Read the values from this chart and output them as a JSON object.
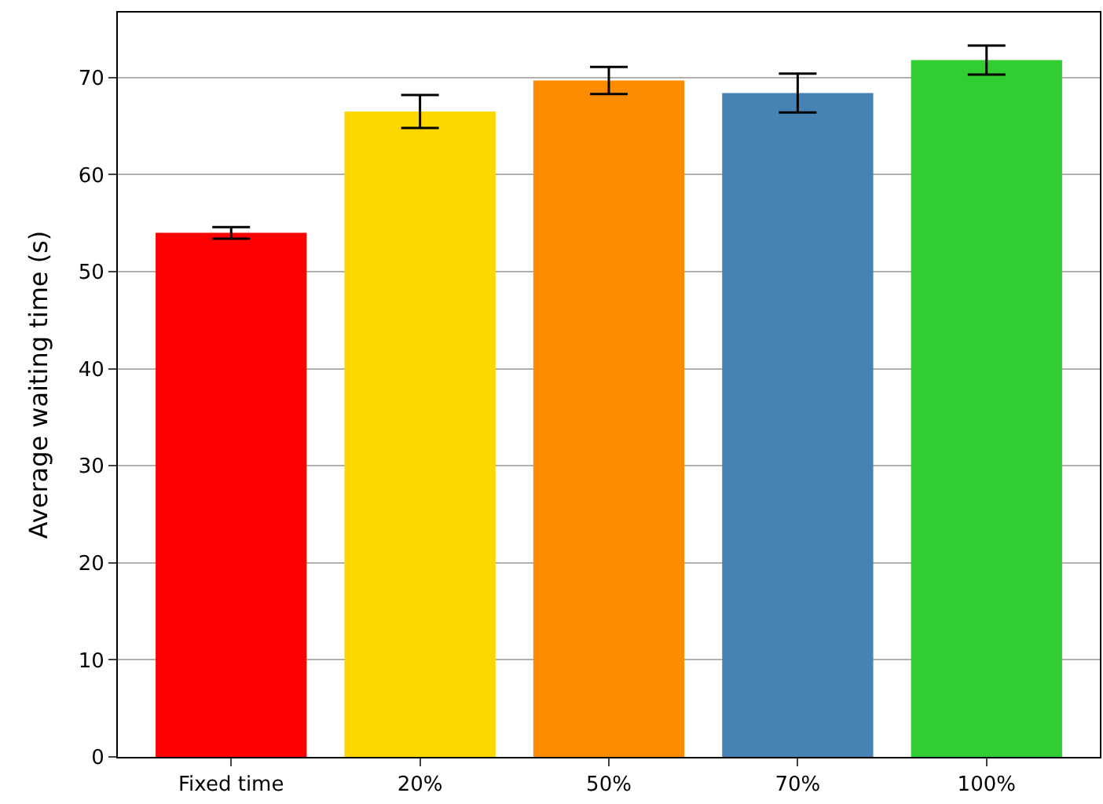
{
  "chart_data": {
    "type": "bar",
    "ylabel": "Average waiting time (s)",
    "categories": [
      "Fixed time",
      "20%",
      "50%",
      "70%",
      "100%"
    ],
    "values": [
      54.0,
      66.5,
      69.7,
      68.4,
      71.8
    ],
    "errors": [
      0.6,
      1.7,
      1.4,
      2.0,
      1.5
    ],
    "colors": [
      "#ff0000",
      "#ffd700",
      "#ff8c00",
      "#4682b4",
      "#32cd32"
    ],
    "ylim": [
      0,
      76.7
    ],
    "yticks": [
      0,
      10,
      20,
      30,
      40,
      50,
      60,
      70
    ],
    "grid": "y"
  }
}
